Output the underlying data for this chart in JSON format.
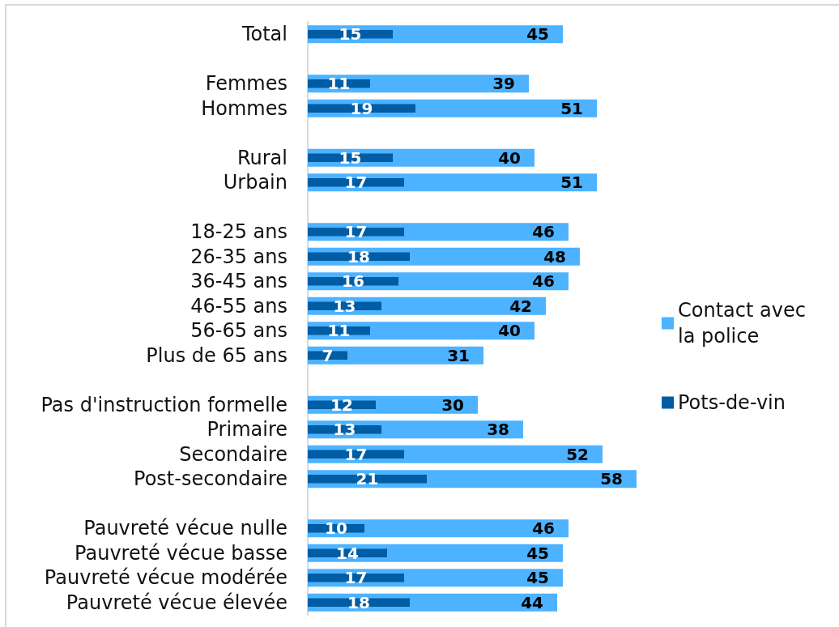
{
  "chart_data": {
    "type": "bar",
    "orientation": "horizontal",
    "categories": [
      "Total",
      null,
      "Femmes",
      "Hommes",
      null,
      "Rural",
      "Urbain",
      null,
      "18-25 ans",
      "26-35 ans",
      "36-45 ans",
      "46-55 ans",
      "56-65 ans",
      "Plus de 65 ans",
      null,
      "Pas d'instruction formelle",
      "Primaire",
      "Secondaire",
      "Post-secondaire",
      null,
      "Pauvreté vécue nulle",
      "Pauvreté vécue basse",
      "Pauvreté vécue modérée",
      "Pauvreté vécue élevée"
    ],
    "series": [
      {
        "name": "Contact avec la police",
        "color": "#4db2ff",
        "values": [
          45,
          null,
          39,
          51,
          null,
          40,
          51,
          null,
          46,
          48,
          46,
          42,
          40,
          31,
          null,
          30,
          38,
          52,
          58,
          null,
          46,
          45,
          45,
          44
        ]
      },
      {
        "name": "Pots-de-vin",
        "color": "#005ca3",
        "values": [
          15,
          null,
          11,
          19,
          null,
          15,
          17,
          null,
          17,
          18,
          16,
          13,
          11,
          7,
          null,
          12,
          13,
          17,
          21,
          null,
          10,
          14,
          17,
          18
        ]
      }
    ],
    "data_labels": true,
    "legend": "right",
    "tick_labels": "y"
  }
}
